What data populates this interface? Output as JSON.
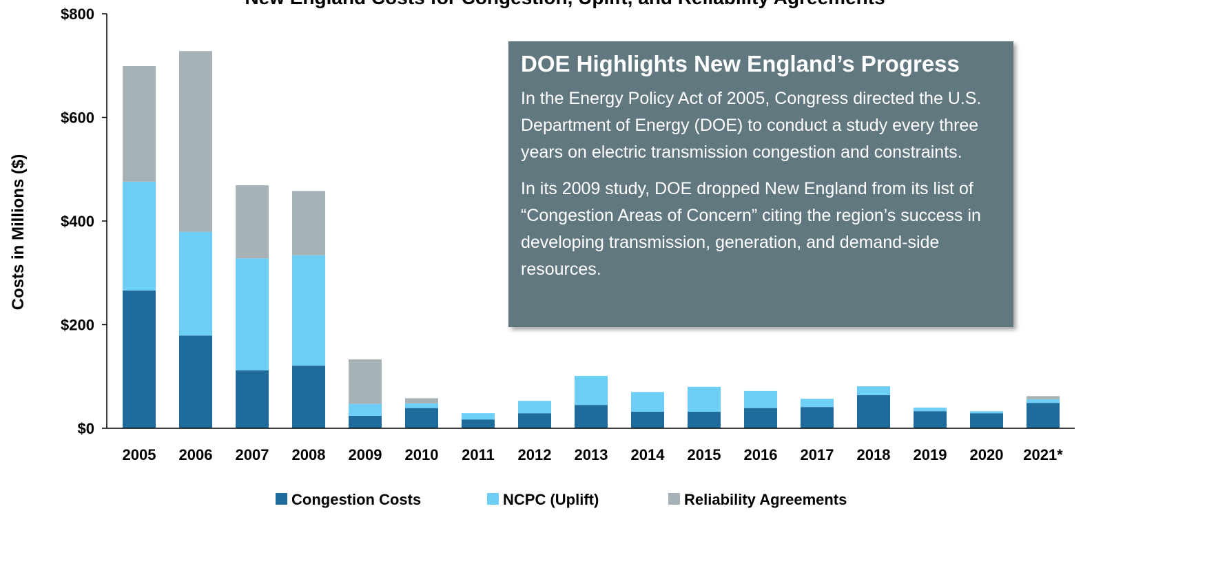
{
  "chart_data": {
    "type": "stacked_bar",
    "title": "New England Costs for Congestion, Uplift, and Reliability Agreements",
    "y_label": "Costs in Millions ($)",
    "categories": [
      "2005",
      "2006",
      "2007",
      "2008",
      "2009",
      "2010",
      "2011",
      "2012",
      "2013",
      "2014",
      "2015",
      "2016",
      "2017",
      "2018",
      "2019",
      "2020",
      "2021*"
    ],
    "series": [
      {
        "name": "Congestion Costs",
        "color": "#1f6b9b",
        "values": [
          266,
          179,
          112,
          121,
          24,
          39,
          17,
          29,
          45,
          32,
          32,
          39,
          41,
          64,
          33,
          29,
          49
        ]
      },
      {
        "name": "NCPC (Uplift)",
        "color": "#6dcff6",
        "values": [
          210,
          200,
          216,
          213,
          23,
          9,
          12,
          24,
          56,
          38,
          48,
          33,
          16,
          17,
          7,
          4,
          7
        ]
      },
      {
        "name": "Reliability Agreements",
        "color": "#a7b2b6",
        "values": [
          223,
          349,
          141,
          124,
          86,
          10,
          0,
          0,
          0,
          0,
          0,
          0,
          0,
          0,
          0,
          0,
          6
        ]
      }
    ],
    "ylim": [
      0,
      800
    ],
    "yticks": [
      {
        "value": 0,
        "label": "$0"
      },
      {
        "value": 200,
        "label": "$200"
      },
      {
        "value": 400,
        "label": "$400"
      },
      {
        "value": 600,
        "label": "$600"
      },
      {
        "value": 800,
        "label": "$800"
      }
    ],
    "legend": "bottom",
    "annotation": {
      "title": "DOE Highlights New England’s Progress",
      "paragraphs": [
        "In the Energy Policy Act of 2005, Congress directed the U.S. Department of Energy (DOE) to conduct a study every three years on electric transmission congestion and constraints.",
        "In its 2009 study, DOE dropped New England from its list of “Congestion Areas of Concern” citing the region’s success in developing transmission, generation, and demand-side resources."
      ]
    }
  }
}
